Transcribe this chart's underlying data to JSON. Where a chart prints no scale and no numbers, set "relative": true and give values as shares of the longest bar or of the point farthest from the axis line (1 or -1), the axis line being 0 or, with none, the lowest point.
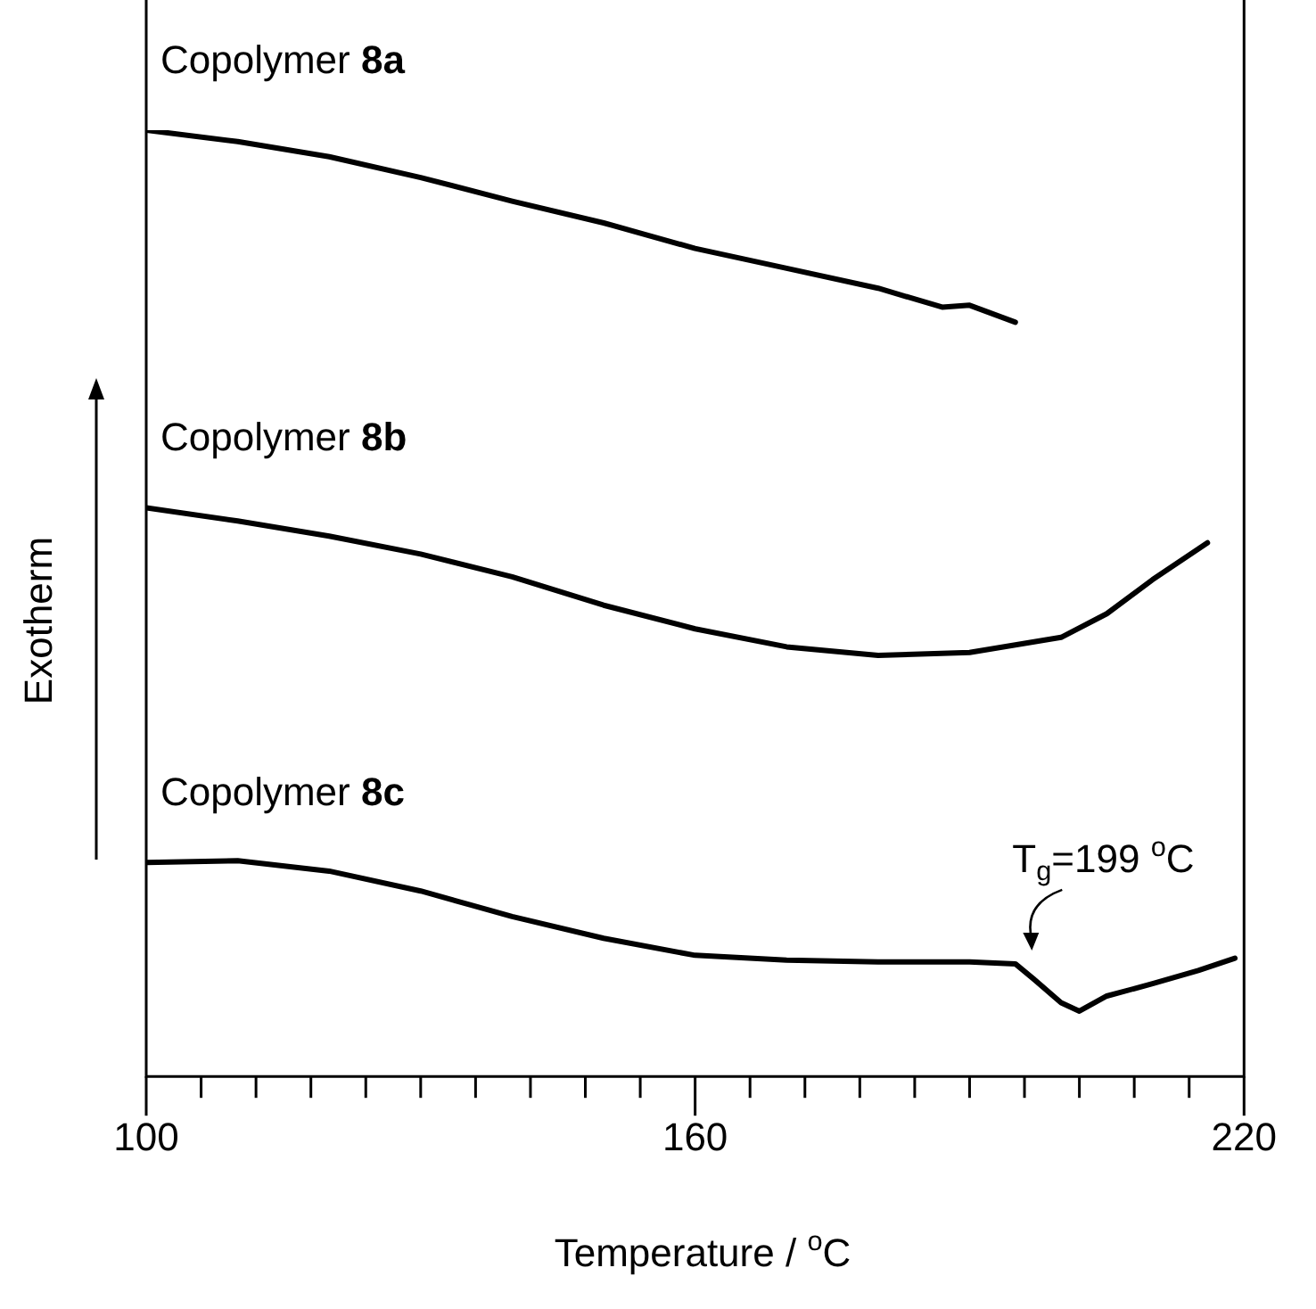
{
  "chart_data": {
    "type": "line",
    "relative": true,
    "xlabel": "Temperature / $^{o}$C",
    "ylabel": "Exotherm",
    "xlim": [
      100,
      220
    ],
    "xticks": [
      100,
      {
        "value": 106,
        "label": null
      },
      {
        "value": 112,
        "label": null
      },
      {
        "value": 118,
        "label": null
      },
      {
        "value": 124,
        "label": null
      },
      {
        "value": 130,
        "label": null
      },
      {
        "value": 136,
        "label": null
      },
      {
        "value": 142,
        "label": null
      },
      {
        "value": 148,
        "label": null
      },
      {
        "value": 154,
        "label": null
      },
      160,
      {
        "value": 166,
        "label": null
      },
      {
        "value": 172,
        "label": null
      },
      {
        "value": 178,
        "label": null
      },
      {
        "value": 184,
        "label": null
      },
      {
        "value": 190,
        "label": null
      },
      {
        "value": 196,
        "label": null
      },
      {
        "value": 202,
        "label": null
      },
      {
        "value": 208,
        "label": null
      },
      {
        "value": 214,
        "label": null
      },
      220
    ],
    "grid": false,
    "legend": false,
    "marker": "none",
    "line_style": "solid",
    "annotations": [
      {
        "text": "T$_{g}$=199 $^{o}$C",
        "x": 197,
        "y": 0.103
      }
    ],
    "series": [
      {
        "name": "Copolymer 8a",
        "color": "#000000",
        "x": [
          100,
          110,
          120,
          130,
          140,
          150,
          160,
          170,
          180,
          187,
          190,
          195
        ],
        "values": [
          1.0,
          0.988,
          0.972,
          0.95,
          0.925,
          0.902,
          0.875,
          0.854,
          0.833,
          0.813,
          0.815,
          0.797
        ]
      },
      {
        "name": "Copolymer 8b",
        "color": "#000000",
        "x": [
          100,
          110,
          120,
          130,
          140,
          150,
          160,
          170,
          180,
          190,
          200,
          205,
          210,
          216
        ],
        "values": [
          0.601,
          0.587,
          0.571,
          0.552,
          0.528,
          0.498,
          0.473,
          0.454,
          0.445,
          0.448,
          0.464,
          0.489,
          0.525,
          0.564
        ]
      },
      {
        "name": "Copolymer 8c",
        "color": "#000000",
        "x": [
          100,
          110,
          120,
          130,
          140,
          150,
          160,
          170,
          180,
          190,
          195,
          197,
          200,
          202,
          205,
          210,
          215,
          219
        ],
        "values": [
          0.226,
          0.228,
          0.217,
          0.196,
          0.169,
          0.146,
          0.128,
          0.123,
          0.121,
          0.121,
          0.119,
          0.103,
          0.078,
          0.069,
          0.085,
          0.098,
          0.112,
          0.125
        ]
      }
    ]
  }
}
